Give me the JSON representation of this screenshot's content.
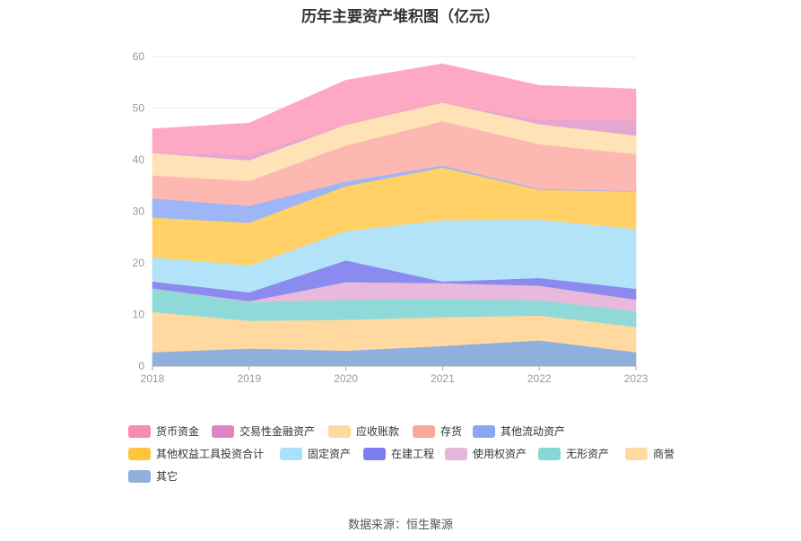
{
  "chart_data": {
    "type": "area",
    "stacked": true,
    "title": "历年主要资产堆积图（亿元）",
    "x": [
      "2018",
      "2019",
      "2020",
      "2021",
      "2022",
      "2023"
    ],
    "ylim": [
      0,
      60
    ],
    "yticks": [
      0,
      10,
      20,
      30,
      40,
      50,
      60
    ],
    "grid": true,
    "legend_position": "bottom",
    "series": [
      {
        "name": "其它",
        "color": "#8fb0dc",
        "values": [
          2.7,
          3.4,
          3.0,
          3.9,
          5.0,
          2.7
        ]
      },
      {
        "name": "商誉",
        "color": "#ffd9a0",
        "values": [
          7.8,
          5.4,
          6.0,
          5.6,
          4.8,
          4.9
        ]
      },
      {
        "name": "无形资产",
        "color": "#8fdad8",
        "values": [
          4.6,
          3.6,
          3.9,
          3.5,
          3.0,
          3.0
        ]
      },
      {
        "name": "使用权资产",
        "color": "#e8b9da",
        "values": [
          0.0,
          0.2,
          3.4,
          3.1,
          2.8,
          2.3
        ]
      },
      {
        "name": "在建工程",
        "color": "#8a8aef",
        "values": [
          1.3,
          1.7,
          4.2,
          0.3,
          1.5,
          2.1
        ]
      },
      {
        "name": "固定资产",
        "color": "#b3e3f8",
        "values": [
          4.7,
          5.2,
          5.7,
          11.9,
          11.3,
          11.6
        ]
      },
      {
        "name": "其他权益工具投资合计",
        "color": "#ffd166",
        "values": [
          7.7,
          8.3,
          8.7,
          10.2,
          5.8,
          7.2
        ]
      },
      {
        "name": "其他流动资产",
        "color": "#9eb6f7",
        "values": [
          3.7,
          3.3,
          0.9,
          0.4,
          0.2,
          0.1
        ]
      },
      {
        "name": "存货",
        "color": "#fdb9b1",
        "values": [
          4.5,
          4.8,
          7.0,
          8.6,
          8.6,
          7.2
        ]
      },
      {
        "name": "应收账款",
        "color": "#ffe2b5",
        "values": [
          4.3,
          4.0,
          4.0,
          3.6,
          3.9,
          3.6
        ]
      },
      {
        "name": "交易性金融资产",
        "color": "#e6a6d2",
        "values": [
          0.0,
          1.0,
          0.0,
          0.0,
          0.8,
          3.0
        ]
      },
      {
        "name": "货币资金",
        "color": "#fda9c3",
        "values": [
          4.7,
          6.2,
          8.6,
          7.5,
          6.7,
          6.0
        ]
      }
    ],
    "legend_order": [
      "货币资金",
      "交易性金融资产",
      "应收账款",
      "存货",
      "其他流动资产",
      "其他权益工具投资合计",
      "固定资产",
      "在建工程",
      "使用权资产",
      "无形资产",
      "商誉",
      "其它"
    ],
    "legend_colors": [
      "#f98bb2",
      "#de86c4",
      "#ffd9a0",
      "#f9a89c",
      "#8aa7f5",
      "#ffc53d",
      "#a9e0fb",
      "#7e7ef2",
      "#e6b6d8",
      "#88d7d6",
      "#ffd9a0",
      "#8fb0dc"
    ]
  },
  "source_text": "数据来源：恒生聚源"
}
